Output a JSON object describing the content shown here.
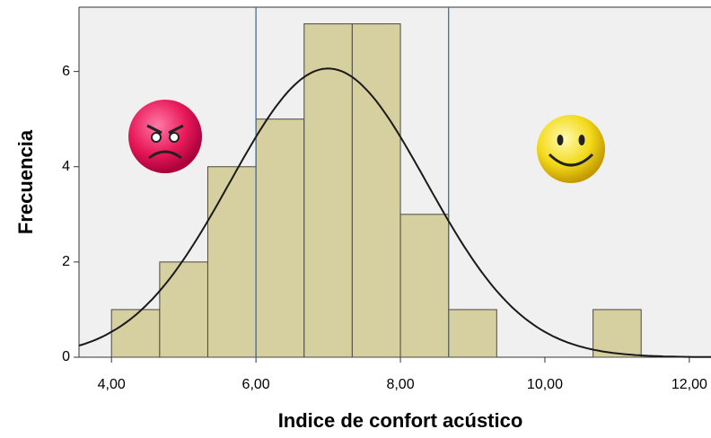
{
  "chart_data": {
    "type": "histogram",
    "xlabel": "Indice de confort acústico",
    "ylabel": "Frecuencia",
    "bins": [
      4,
      4.667,
      5.333,
      6,
      6.667,
      7.333,
      8,
      8.667,
      9.333,
      10,
      10.667,
      11.333
    ],
    "counts": [
      1,
      2,
      4,
      5,
      7,
      7,
      3,
      1,
      0,
      0,
      1
    ],
    "color": "#d6cf9f",
    "xlim": [
      3.55,
      12.3
    ],
    "ylim": [
      0,
      7.35
    ],
    "xticks": [
      {
        "value": 4,
        "label": "4,00"
      },
      {
        "value": 6,
        "label": "6,00"
      },
      {
        "value": 8,
        "label": "8,00"
      },
      {
        "value": 10,
        "label": "10,00"
      },
      {
        "value": 12,
        "label": "12,00"
      }
    ],
    "yticks": [
      0,
      2,
      4,
      6
    ],
    "normal_curve": {
      "mean": 7,
      "sd": 1.36
    },
    "reference_lines": [
      6,
      8.667
    ],
    "reference_color": "#3a6fb0"
  }
}
